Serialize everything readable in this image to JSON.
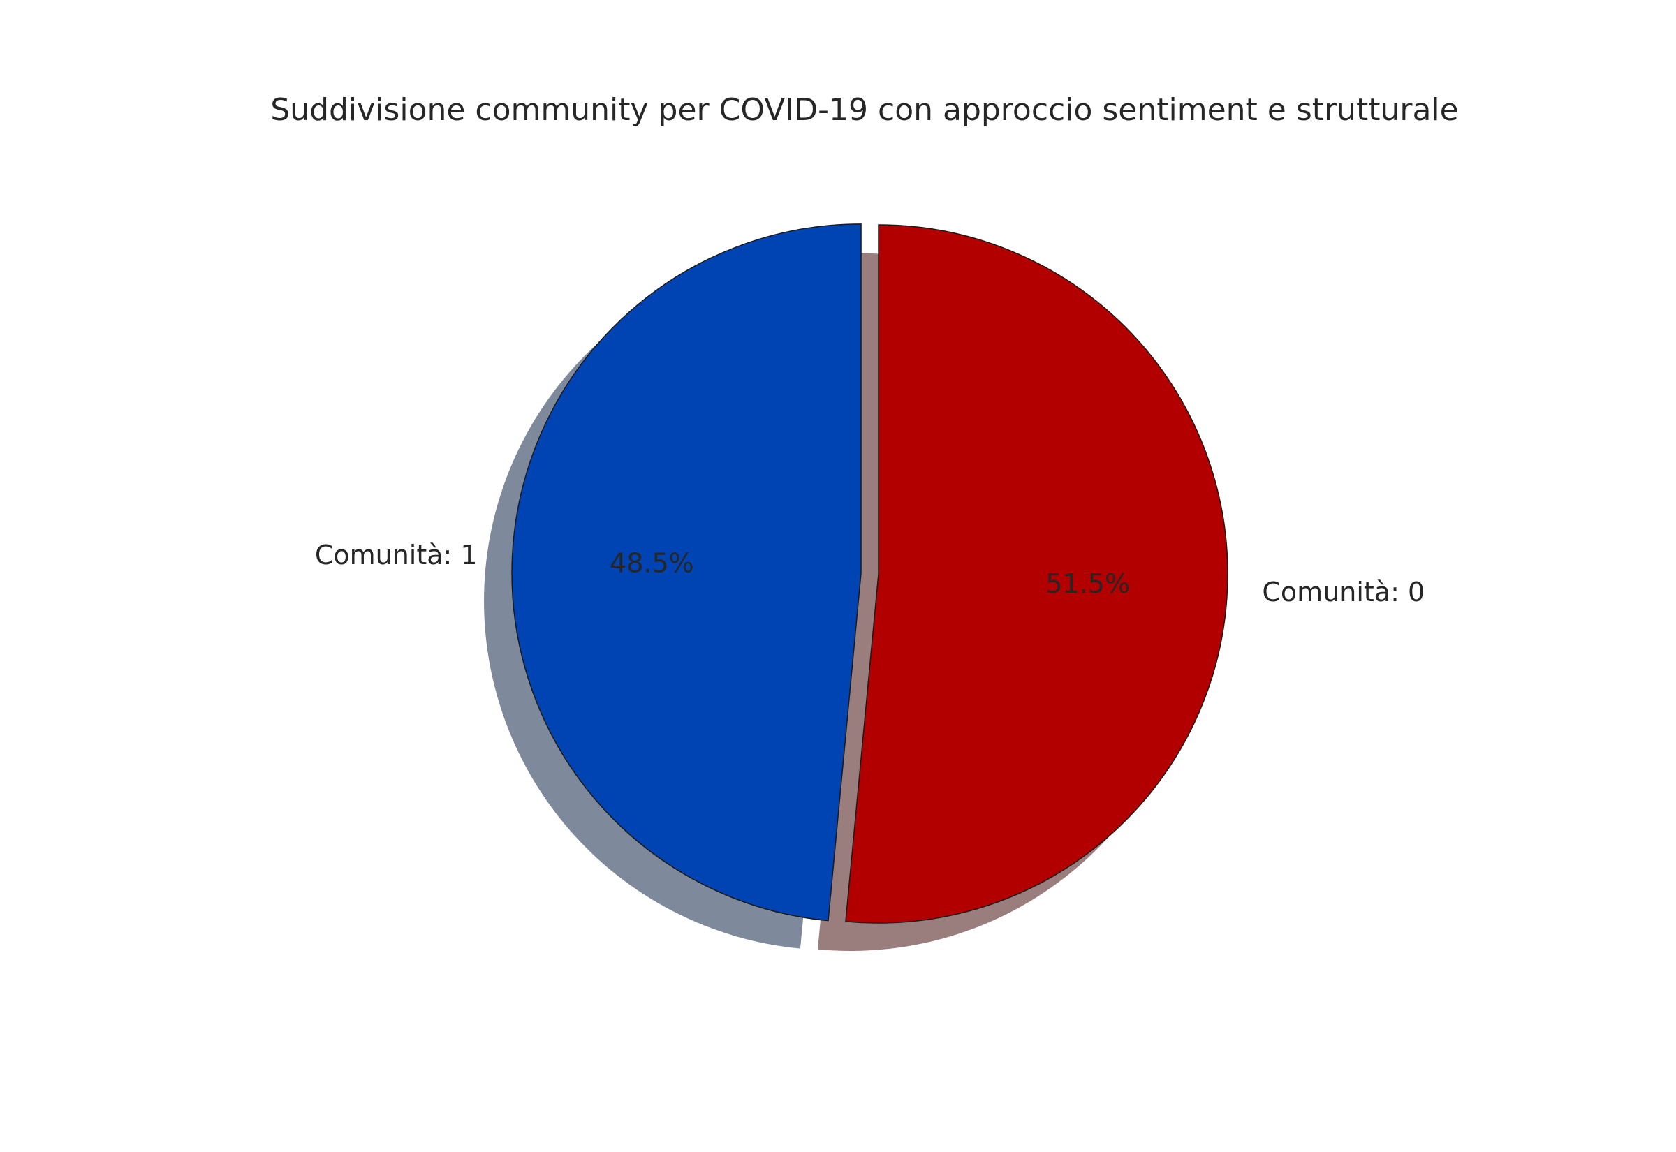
{
  "chart_data": {
    "type": "pie",
    "title": "Suddivisione community per COVID-19 con approccio sentiment e strutturale",
    "slices": [
      {
        "label": "Comunità: 0",
        "value": 51.5,
        "percent_label": "51.5%",
        "color": "#b20000",
        "shadow_color": "#9a7e7e",
        "exploded": false
      },
      {
        "label": "Comunità: 1",
        "value": 48.5,
        "percent_label": "48.5%",
        "color": "#0044b3",
        "shadow_color": "#7e899b",
        "exploded": true
      }
    ],
    "start_angle_deg": 90,
    "direction": "clockwise",
    "shadow": true,
    "edge_color": "#1a1a1a"
  }
}
